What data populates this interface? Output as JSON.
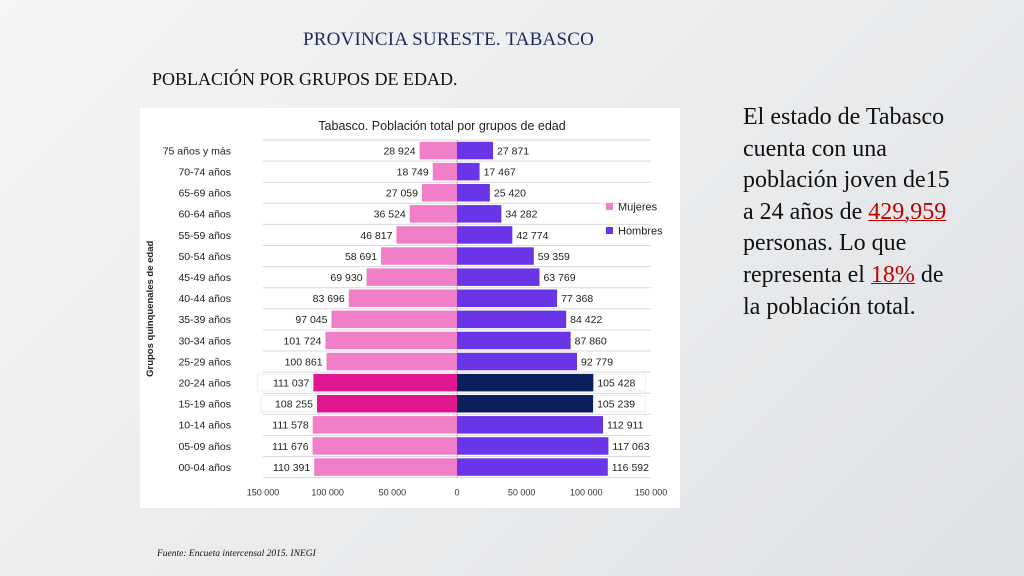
{
  "slide": {
    "title": "PROVINCIA SURESTE. TABASCO",
    "subtitle": "POBLACIÓN POR GRUPOS DE EDAD.",
    "source": "Fuente: Encueta intercensal  2015. INEGI"
  },
  "side_text": {
    "part1": "El estado de Tabasco cuenta con una población joven de15 a 24 años de ",
    "highlight1": "429,959",
    "part2": " personas. Lo que representa el ",
    "highlight2": "18%",
    "part3": " de la población total.",
    "highlight_color": "#c00000"
  },
  "chart_data": {
    "type": "bar",
    "orientation": "horizontal",
    "subtype": "population-pyramid",
    "title": "Tabasco. Población total por grupos de edad",
    "ylabel": "Grupos quinquenales de edad",
    "xlabel": "",
    "xlim": [
      -150000,
      150000
    ],
    "x_ticks": [
      -150000,
      -100000,
      -50000,
      0,
      50000,
      100000,
      150000
    ],
    "x_tick_labels": [
      "150 000",
      "100 000",
      "50 000",
      "0",
      "50 000",
      "100 000",
      "150 000"
    ],
    "grid": true,
    "legend_position": "right",
    "categories": [
      "75 años y más",
      "70-74 años",
      "65-69 años",
      "60-64 años",
      "55-59 años",
      "50-54 años",
      "45-49 años",
      "40-44 años",
      "35-39 años",
      "30-34 años",
      "25-29 años",
      "20-24 años",
      "15-19 años",
      "10-14 años",
      "05-09 años",
      "00-04 años"
    ],
    "highlighted_categories": [
      "20-24 años",
      "15-19 años"
    ],
    "series": [
      {
        "name": "Mujeres",
        "side": "left",
        "color": "#f07ec8",
        "highlight_color": "#e0158f",
        "values": [
          28924,
          18749,
          27059,
          36524,
          46817,
          58691,
          69930,
          83696,
          97045,
          101724,
          100861,
          111037,
          108255,
          111578,
          111676,
          110391
        ],
        "labels": [
          "28 924",
          "18 749",
          "27 059",
          "36 524",
          "46 817",
          "58 691",
          "69 930",
          "83 696",
          "97 045",
          "101 724",
          "100 861",
          "111 037",
          "108 255",
          "111 578",
          "111 676",
          "110 391"
        ]
      },
      {
        "name": "Hombres",
        "side": "right",
        "color": "#6a35e8",
        "highlight_color": "#0c1f5c",
        "values": [
          27871,
          17467,
          25420,
          34282,
          42774,
          59359,
          63769,
          77368,
          84422,
          87860,
          92779,
          105428,
          105239,
          112911,
          117063,
          116592
        ],
        "labels": [
          "27 871",
          "17 467",
          "25 420",
          "34 282",
          "42 774",
          "59 359",
          "63 769",
          "77 368",
          "84 422",
          "87 860",
          "92 779",
          "105 428",
          "105 239",
          "112 911",
          "117 063",
          "116 592"
        ]
      }
    ]
  }
}
